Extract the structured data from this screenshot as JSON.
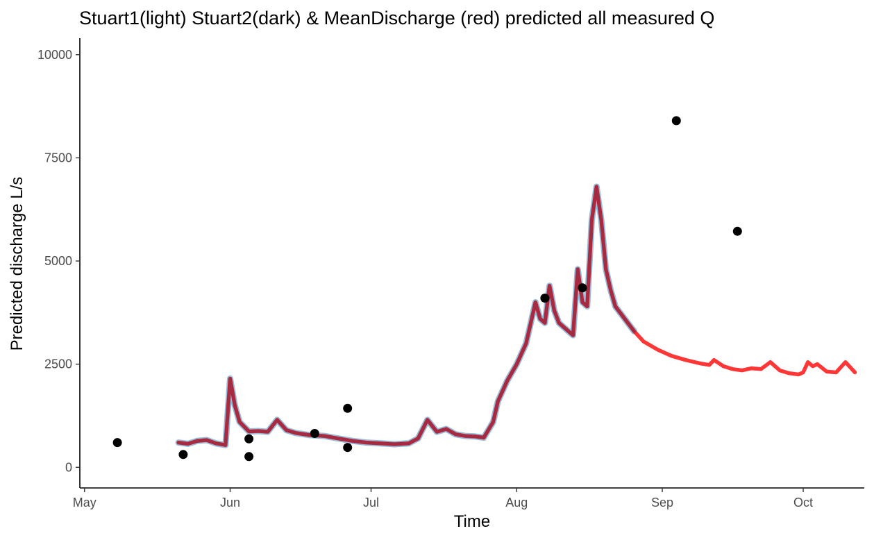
{
  "chart_data": {
    "type": "line",
    "title": "Stuart1(light) Stuart2(dark) & MeanDischarge (red) predicted all measured Q",
    "xlabel": "Time",
    "ylabel": "Predicted discharge L/s",
    "ylim": [
      -500,
      10400
    ],
    "xlim": [
      "2023-04-30",
      "2023-10-14"
    ],
    "y_ticks": [
      0,
      2500,
      5000,
      7500,
      10000
    ],
    "x_ticks": [
      {
        "date": "2023-05-01",
        "label": "May"
      },
      {
        "date": "2023-06-01",
        "label": "Jun"
      },
      {
        "date": "2023-07-01",
        "label": "Jul"
      },
      {
        "date": "2023-08-01",
        "label": "Aug"
      },
      {
        "date": "2023-09-01",
        "label": "Sep"
      },
      {
        "date": "2023-10-01",
        "label": "Oct"
      }
    ],
    "grid": false,
    "colors": {
      "stuart1": "#7fb2d5",
      "stuart2": "#8b2a4a",
      "mean": "#ff2020",
      "measured": "#000000"
    },
    "series": [
      {
        "name": "MeanDischarge (red)",
        "points": [
          [
            "2023-05-21",
            600
          ],
          [
            "2023-05-23",
            570
          ],
          [
            "2023-05-25",
            640
          ],
          [
            "2023-05-27",
            660
          ],
          [
            "2023-05-29",
            580
          ],
          [
            "2023-05-31",
            540
          ],
          [
            "2023-06-01",
            2150
          ],
          [
            "2023-06-02",
            1500
          ],
          [
            "2023-06-03",
            1100
          ],
          [
            "2023-06-05",
            870
          ],
          [
            "2023-06-07",
            880
          ],
          [
            "2023-06-09",
            860
          ],
          [
            "2023-06-11",
            1150
          ],
          [
            "2023-06-13",
            900
          ],
          [
            "2023-06-15",
            830
          ],
          [
            "2023-06-18",
            780
          ],
          [
            "2023-06-21",
            760
          ],
          [
            "2023-06-24",
            700
          ],
          [
            "2023-06-27",
            640
          ],
          [
            "2023-06-30",
            600
          ],
          [
            "2023-07-03",
            580
          ],
          [
            "2023-07-06",
            560
          ],
          [
            "2023-07-09",
            580
          ],
          [
            "2023-07-11",
            700
          ],
          [
            "2023-07-13",
            1150
          ],
          [
            "2023-07-15",
            860
          ],
          [
            "2023-07-17",
            930
          ],
          [
            "2023-07-19",
            800
          ],
          [
            "2023-07-21",
            760
          ],
          [
            "2023-07-23",
            750
          ],
          [
            "2023-07-25",
            720
          ],
          [
            "2023-07-27",
            1100
          ],
          [
            "2023-07-28",
            1600
          ],
          [
            "2023-07-30",
            2100
          ],
          [
            "2023-08-01",
            2500
          ],
          [
            "2023-08-03",
            3000
          ],
          [
            "2023-08-04",
            3500
          ],
          [
            "2023-08-05",
            4000
          ],
          [
            "2023-08-06",
            3600
          ],
          [
            "2023-08-07",
            3500
          ],
          [
            "2023-08-08",
            4400
          ],
          [
            "2023-08-09",
            3800
          ],
          [
            "2023-08-10",
            3500
          ],
          [
            "2023-08-12",
            3300
          ],
          [
            "2023-08-13",
            3200
          ],
          [
            "2023-08-14",
            4800
          ],
          [
            "2023-08-15",
            4000
          ],
          [
            "2023-08-16",
            3900
          ],
          [
            "2023-08-17",
            6000
          ],
          [
            "2023-08-18",
            6800
          ],
          [
            "2023-08-19",
            6000
          ],
          [
            "2023-08-20",
            4800
          ],
          [
            "2023-08-21",
            4300
          ],
          [
            "2023-08-22",
            3900
          ],
          [
            "2023-08-24",
            3600
          ],
          [
            "2023-08-26",
            3300
          ],
          [
            "2023-08-28",
            3050
          ],
          [
            "2023-08-31",
            2850
          ],
          [
            "2023-09-03",
            2700
          ],
          [
            "2023-09-06",
            2600
          ],
          [
            "2023-09-09",
            2520
          ],
          [
            "2023-09-11",
            2480
          ],
          [
            "2023-09-12",
            2600
          ],
          [
            "2023-09-14",
            2450
          ],
          [
            "2023-09-16",
            2380
          ],
          [
            "2023-09-18",
            2350
          ],
          [
            "2023-09-20",
            2400
          ],
          [
            "2023-09-22",
            2380
          ],
          [
            "2023-09-24",
            2550
          ],
          [
            "2023-09-26",
            2350
          ],
          [
            "2023-09-28",
            2280
          ],
          [
            "2023-09-30",
            2250
          ],
          [
            "2023-10-01",
            2300
          ],
          [
            "2023-10-02",
            2550
          ],
          [
            "2023-10-03",
            2450
          ],
          [
            "2023-10-04",
            2500
          ],
          [
            "2023-10-06",
            2320
          ],
          [
            "2023-10-08",
            2300
          ],
          [
            "2023-10-10",
            2550
          ],
          [
            "2023-10-12",
            2300
          ]
        ]
      }
    ],
    "measured": [
      [
        "2023-05-08",
        600
      ],
      [
        "2023-05-22",
        310
      ],
      [
        "2023-06-05",
        690
      ],
      [
        "2023-06-05",
        260
      ],
      [
        "2023-06-19",
        820
      ],
      [
        "2023-06-26",
        1430
      ],
      [
        "2023-06-26",
        480
      ],
      [
        "2023-08-07",
        4100
      ],
      [
        "2023-08-15",
        4350
      ],
      [
        "2023-09-04",
        8400
      ],
      [
        "2023-09-17",
        5720
      ]
    ]
  }
}
